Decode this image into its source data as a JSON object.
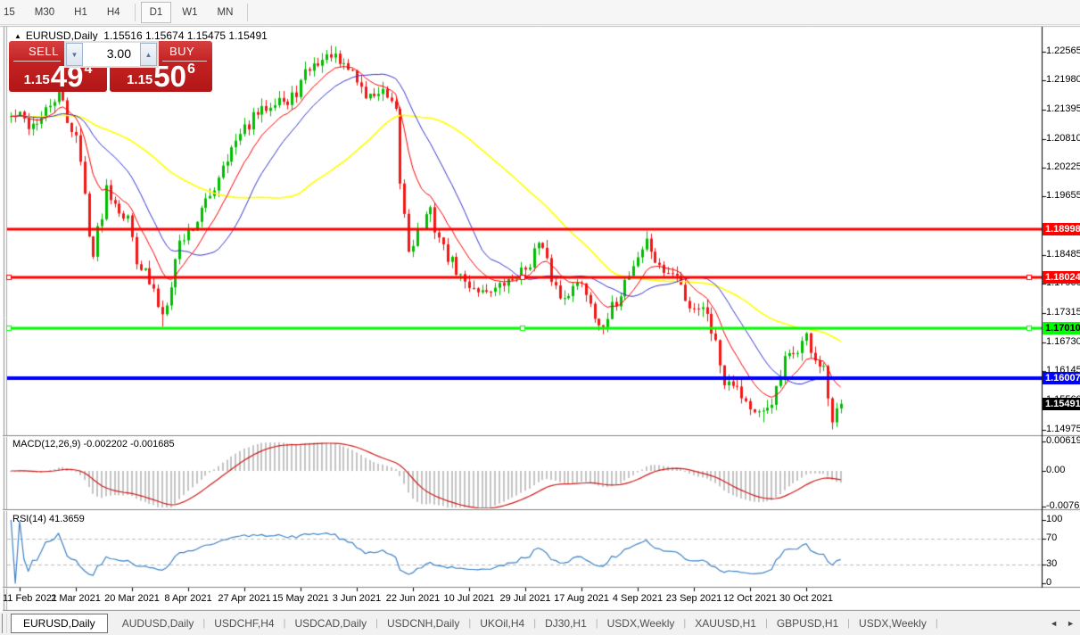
{
  "toolbar": {
    "items": [
      {
        "label": "15",
        "cut": true
      },
      {
        "label": "M30"
      },
      {
        "label": "H1"
      },
      {
        "label": "H4"
      },
      {
        "sep": true
      },
      {
        "label": "D1",
        "active": true
      },
      {
        "label": "W1"
      },
      {
        "label": "MN"
      },
      {
        "sep": true
      }
    ]
  },
  "chart_header": {
    "collapse_icon": "▲",
    "symbol": "EURUSD,Daily",
    "ohlc_text": "1.15516 1.15674 1.15475 1.15491"
  },
  "trade_panel": {
    "sell_label": "SELL",
    "buy_label": "BUY",
    "volume": "3.00",
    "down_icon": "▼",
    "up_icon": "▲",
    "sell_price": {
      "prefix": "1.15",
      "big": "49",
      "sup": "4"
    },
    "buy_price": {
      "prefix": "1.15",
      "big": "50",
      "sup": "6"
    }
  },
  "chart_data": {
    "type": "candlestick",
    "symbol": "EURUSD",
    "timeframe": "Daily",
    "ylim": [
      1.14975,
      1.23045
    ],
    "y_ticks": [
      {
        "label": "1.22565",
        "price": 1.22565
      },
      {
        "label": "1.21980",
        "price": 1.2198
      },
      {
        "label": "1.21395",
        "price": 1.21395
      },
      {
        "label": "1.20810",
        "price": 1.2081
      },
      {
        "label": "1.20225",
        "price": 1.20225
      },
      {
        "label": "1.19655",
        "price": 1.19655
      },
      {
        "label": "1.18485",
        "price": 1.18485
      },
      {
        "label": "1.17900",
        "price": 1.179
      },
      {
        "label": "1.17315",
        "price": 1.17315
      },
      {
        "label": "1.16730",
        "price": 1.1673
      },
      {
        "label": "1.16145",
        "price": 1.16145
      },
      {
        "label": "1.15560",
        "price": 1.1556
      },
      {
        "label": "1.14975",
        "price": 1.14975
      }
    ],
    "price_labels": [
      {
        "label": "1.18998",
        "price": 1.18998,
        "bg": "#ff0000",
        "fg": "#ffffff"
      },
      {
        "label": "1.18024",
        "price": 1.18024,
        "bg": "#ff0000",
        "fg": "#ffffff"
      },
      {
        "label": "1.17010",
        "price": 1.1701,
        "bg": "#00ff00",
        "fg": "#000000"
      },
      {
        "label": "1.16007",
        "price": 1.16007,
        "bg": "#0000ff",
        "fg": "#ffffff"
      },
      {
        "label": "1.15491",
        "price": 1.15491,
        "bg": "#000000",
        "fg": "#ffffff"
      }
    ],
    "levels": [
      {
        "price": 1.18998,
        "color": "#ff0000",
        "width": 3,
        "handles": false
      },
      {
        "price": 1.18024,
        "color": "#ff0000",
        "width": 3,
        "handles": true
      },
      {
        "price": 1.1701,
        "color": "#00ff00",
        "width": 3,
        "handles": true
      },
      {
        "price": 1.16007,
        "color": "#0000ff",
        "width": 4,
        "handles": false
      }
    ],
    "x_ticks": [
      "11 Feb 2021",
      "2 Mar 2021",
      "20 Mar 2021",
      "8 Apr 2021",
      "27 Apr 2021",
      "15 May 2021",
      "3 Jun 2021",
      "22 Jun 2021",
      "10 Jul 2021",
      "29 Jul 2021",
      "17 Aug 2021",
      "4 Sep 2021",
      "23 Sep 2021",
      "12 Oct 2021",
      "30 Oct 2021"
    ],
    "close_waypoints": [
      [
        -2,
        1.2125
      ],
      [
        0,
        1.2129
      ],
      [
        2,
        1.2106
      ],
      [
        5,
        1.212
      ],
      [
        9,
        1.2176
      ],
      [
        11,
        1.212
      ],
      [
        13,
        1.2088
      ],
      [
        17,
        1.1845
      ],
      [
        20,
        1.1985
      ],
      [
        25,
        1.1916
      ],
      [
        27,
        1.1849
      ],
      [
        33,
        1.173
      ],
      [
        37,
        1.1873
      ],
      [
        40,
        1.1905
      ],
      [
        44,
        1.1966
      ],
      [
        47,
        1.2034
      ],
      [
        54,
        1.2124
      ],
      [
        60,
        1.2165
      ],
      [
        62,
        1.2147
      ],
      [
        67,
        1.2223
      ],
      [
        72,
        1.225
      ],
      [
        74,
        1.223
      ],
      [
        77,
        1.2216
      ],
      [
        80,
        1.2166
      ],
      [
        84,
        1.2174
      ],
      [
        87,
        1.2125
      ],
      [
        88,
        1.1994
      ],
      [
        90,
        1.1863
      ],
      [
        95,
        1.1936
      ],
      [
        98,
        1.1858
      ],
      [
        103,
        1.179
      ],
      [
        107,
        1.1775
      ],
      [
        110,
        1.178
      ],
      [
        113,
        1.1794
      ],
      [
        117,
        1.1822
      ],
      [
        120,
        1.187
      ],
      [
        125,
        1.1761
      ],
      [
        130,
        1.1795
      ],
      [
        135,
        1.1697
      ],
      [
        140,
        1.1796
      ],
      [
        145,
        1.1878
      ],
      [
        148,
        1.1818
      ],
      [
        152,
        1.1805
      ],
      [
        155,
        1.1745
      ],
      [
        159,
        1.1739
      ],
      [
        163,
        1.1599
      ],
      [
        165,
        1.1595
      ],
      [
        168,
        1.1555
      ],
      [
        170,
        1.1528
      ],
      [
        172,
        1.1529
      ],
      [
        175,
        1.1571
      ],
      [
        177,
        1.1633
      ],
      [
        180,
        1.166
      ],
      [
        182,
        1.1685
      ],
      [
        184,
        1.164
      ],
      [
        186,
        1.1605
      ],
      [
        187,
        1.156
      ],
      [
        188,
        1.1512
      ],
      [
        189,
        1.154
      ],
      [
        190,
        1.15491
      ]
    ],
    "wick_overrides": [
      {
        "i": 9,
        "high": 1.2243
      },
      {
        "i": 72,
        "high": 1.2268
      },
      {
        "i": 33,
        "low": 1.1704
      },
      {
        "i": 172,
        "low": 1.1512
      },
      {
        "i": 188,
        "low": 1.1498
      }
    ],
    "candle_colors": {
      "up": "#00bd00",
      "down": "#f21616"
    },
    "moving_averages": [
      {
        "type": "ema",
        "period": 10,
        "color": "#ff0000",
        "width": 1
      },
      {
        "type": "sma",
        "period": 20,
        "color": "#3535cf",
        "width": 1
      },
      {
        "type": "sma",
        "period": 50,
        "color": "#ffff00",
        "width": 1.6
      }
    ],
    "indicators": {
      "macd": {
        "label": "MACD(12,26,9) -0.002202 -0.001685",
        "params": [
          12,
          26,
          9
        ],
        "values": [
          -0.002202,
          -0.001685
        ],
        "histogram_color": "#c4c4c4",
        "signal_color": "#cf1a1a",
        "axis": [
          {
            "label": "0.006193",
            "value": 0.006193
          },
          {
            "label": "0.00",
            "value": 0
          },
          {
            "label": "-0.00762",
            "value": -0.00762
          }
        ]
      },
      "rsi": {
        "label": "RSI(14) 41.3659",
        "period": 14,
        "value": 41.3659,
        "line_color": "#3d82c4",
        "dashed_levels": [
          70,
          30
        ],
        "axis": [
          {
            "label": "100",
            "value": 100
          },
          {
            "label": "70",
            "value": 70
          },
          {
            "label": "30",
            "value": 30
          },
          {
            "label": "0",
            "value": 0
          }
        ]
      }
    }
  },
  "tabs": {
    "items": [
      {
        "label": "EURUSD,Daily",
        "active": true
      },
      {
        "label": "AUDUSD,Daily"
      },
      {
        "label": "USDCHF,H4"
      },
      {
        "label": "USDCAD,Daily"
      },
      {
        "label": "USDCNH,Daily"
      },
      {
        "label": "UKOil,H4"
      },
      {
        "label": "DJ30,H1"
      },
      {
        "label": "USDX,Weekly"
      },
      {
        "label": "XAUUSD,H1"
      },
      {
        "label": "GBPUSD,H1"
      },
      {
        "label": "USDX,Weekly"
      }
    ],
    "nav_left": "◄",
    "nav_right": "►"
  }
}
